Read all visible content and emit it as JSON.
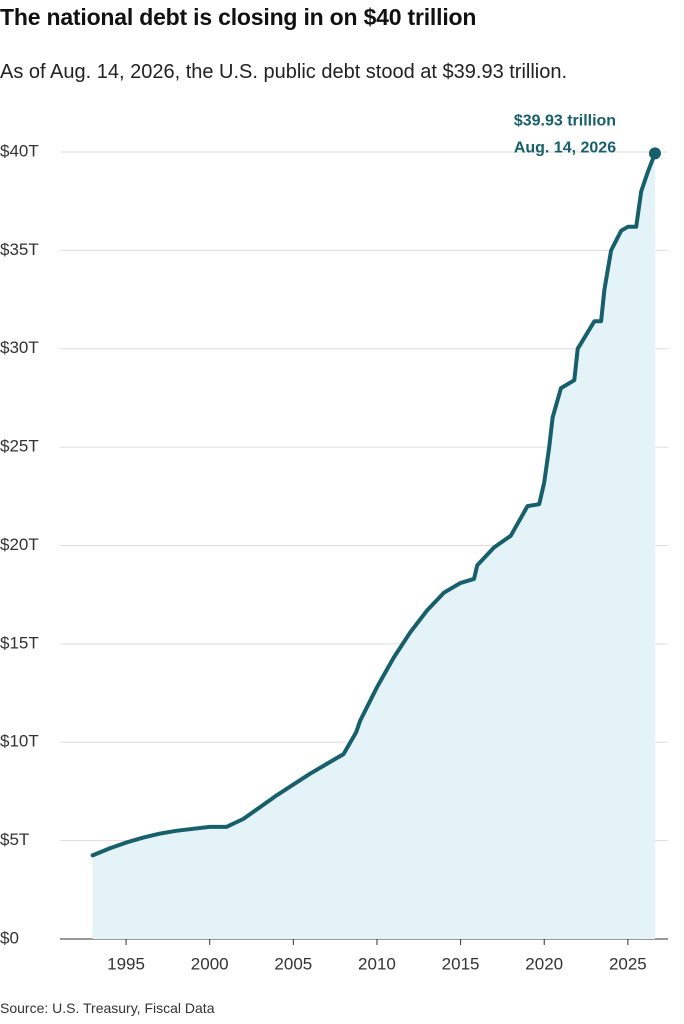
{
  "chart_data": {
    "type": "area",
    "title": "The national debt is closing in on $40 trillion",
    "subtitle": "As of Aug. 14, 2026, the U.S. public debt stood at $39.93 trillion.",
    "source": "Source: U.S. Treasury, Fiscal Data",
    "annotation": {
      "value_text": "$39.93 trillion",
      "date_text": "Aug. 14, 2026"
    },
    "x": [
      1993,
      1994,
      1995,
      1996,
      1997,
      1998,
      1999,
      2000,
      2001,
      2002,
      2003,
      2004,
      2005,
      2006,
      2007,
      2008,
      2008.75,
      2009,
      2010,
      2011,
      2012,
      2013,
      2014,
      2015,
      2015.8,
      2016,
      2017,
      2018,
      2019,
      2019.7,
      2020,
      2020.3,
      2020.5,
      2021,
      2021.8,
      2022,
      2023,
      2023.4,
      2023.6,
      2024,
      2024.6,
      2025,
      2025.5,
      2025.8,
      2026.2,
      2026.62
    ],
    "y": [
      4.25,
      4.6,
      4.9,
      5.15,
      5.35,
      5.5,
      5.6,
      5.7,
      5.7,
      6.1,
      6.7,
      7.3,
      7.85,
      8.4,
      8.9,
      9.4,
      10.5,
      11.1,
      12.8,
      14.3,
      15.6,
      16.7,
      17.6,
      18.1,
      18.3,
      19.0,
      19.9,
      20.5,
      22.0,
      22.1,
      23.2,
      25.0,
      26.5,
      28.0,
      28.4,
      30.0,
      31.4,
      31.4,
      33.0,
      35.0,
      36.0,
      36.2,
      36.2,
      38.0,
      39.0,
      39.93
    ],
    "line_color": "#17606b",
    "fill_color": "#e3f3f8",
    "xlim": [
      1991.05,
      2027.4
    ],
    "ylim": [
      0,
      40
    ],
    "xticks": [
      1995,
      2000,
      2005,
      2010,
      2015,
      2020,
      2025
    ],
    "yticks": [
      {
        "value": 0,
        "label": "$0"
      },
      {
        "value": 5,
        "label": "$5T"
      },
      {
        "value": 10,
        "label": "$10T"
      },
      {
        "value": 15,
        "label": "$15T"
      },
      {
        "value": 20,
        "label": "$20T"
      },
      {
        "value": 25,
        "label": "$25T"
      },
      {
        "value": 30,
        "label": "$30T"
      },
      {
        "value": 35,
        "label": "$35T"
      },
      {
        "value": 40,
        "label": "$40T"
      }
    ],
    "grid": true
  }
}
